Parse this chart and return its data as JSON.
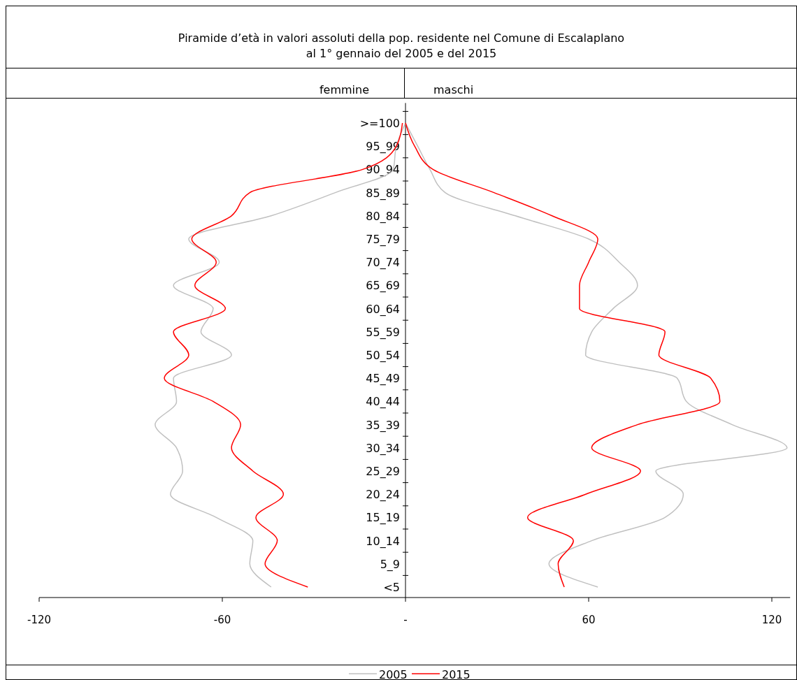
{
  "chart_data": {
    "type": "line",
    "orientation": "horizontal",
    "title": "Piramide d’età in valori assoluti della pop. residente nel Comune di Escalaplano\nal 1° gennaio del 2005 e del 2015",
    "annotations": [
      "femmine",
      "maschi"
    ],
    "categories": [
      ">=100",
      "95_99",
      "90_94",
      "85_89",
      "80_84",
      "75_79",
      "70_74",
      "65_69",
      "60_64",
      "55_59",
      "50_54",
      "45_49",
      "40_44",
      "35_39",
      "30_34",
      "25_29",
      "20_24",
      "15_19",
      "10_14",
      "5_9",
      "<5"
    ],
    "series": [
      {
        "name": "2005",
        "color": "#c0c0c0",
        "values": [
          0,
          -3,
          -4,
          -23,
          -44,
          -71,
          -61,
          -76,
          -63,
          -67,
          -57,
          -76,
          -75,
          -82,
          -75,
          -73,
          -77,
          -62,
          -50,
          -51,
          -44
        ]
      },
      {
        "name": "2015",
        "color": "#ff0000",
        "values": [
          -1,
          -3,
          -14,
          -51,
          -57,
          -70,
          -62,
          -69,
          -59,
          -76,
          -71,
          -79,
          -63,
          -54,
          -57,
          -50,
          -40,
          -49,
          -42,
          -46,
          -32
        ]
      },
      {
        "color": "#c0c0c0",
        "values": [
          0,
          4,
          8,
          13,
          36,
          60,
          70,
          76,
          68,
          61,
          59,
          89,
          92,
          107,
          125,
          82,
          91,
          85,
          61,
          47,
          63
        ]
      },
      {
        "color": "#ff0000",
        "values": [
          0,
          3,
          9,
          29,
          48,
          63,
          60,
          57,
          57,
          85,
          83,
          100,
          103,
          76,
          61,
          77,
          59,
          40,
          55,
          50,
          52
        ]
      }
    ],
    "xlim": [
      -120,
      126
    ],
    "xticks": [
      -120,
      -60,
      {
        "value": 0,
        "label": "-"
      },
      60,
      120
    ],
    "legend": "bottom",
    "grid": false,
    "marker": "none",
    "line_style": "solid"
  }
}
